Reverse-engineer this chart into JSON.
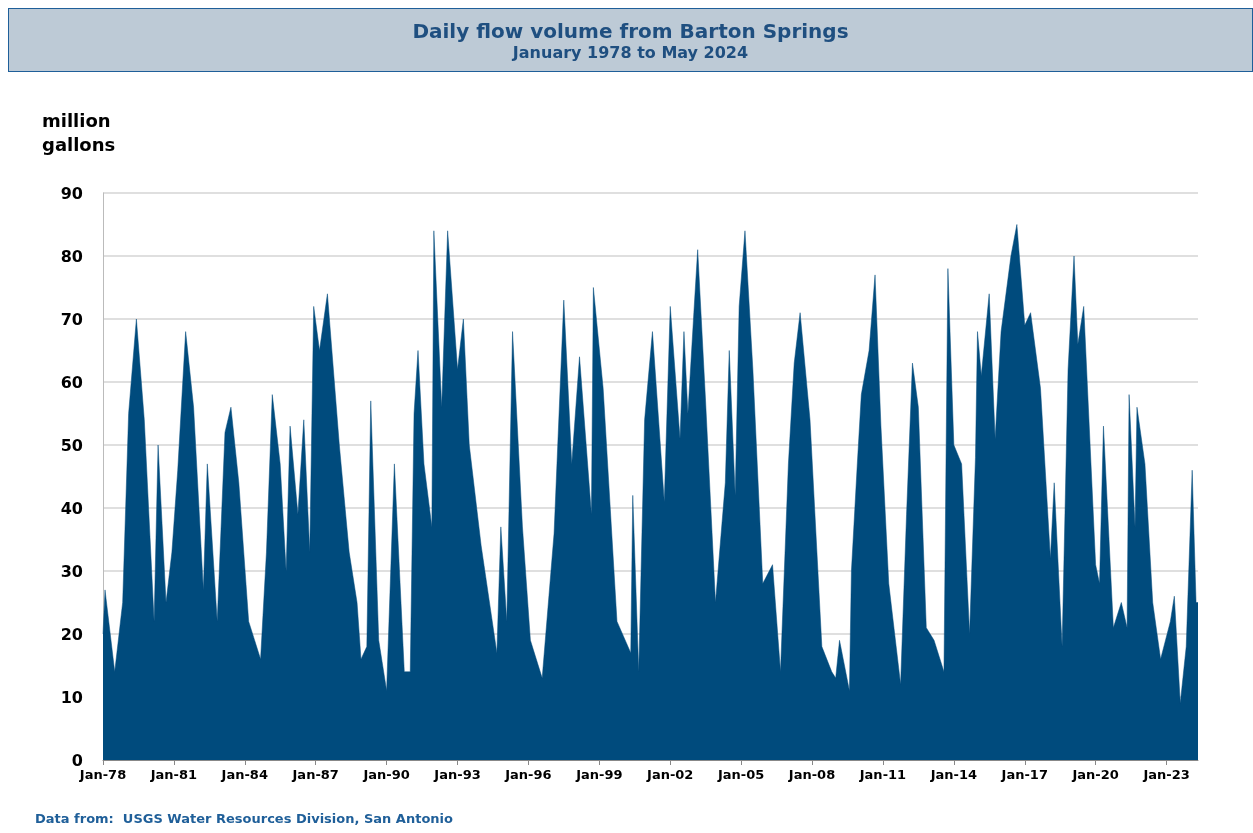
{
  "chart_data": {
    "type": "area",
    "title": "Daily flow volume from Barton Springs",
    "subtitle": "January 1978 to May 2024",
    "ylabel": "million gallons",
    "annotations": [
      "Data from:  USGS Water Resources Division, San Antonio"
    ],
    "color": "#004b7d",
    "x": [
      "1978-01",
      "1978-02",
      "1978-07",
      "1978-11",
      "1979-02",
      "1979-06",
      "1979-10",
      "1980-03",
      "1980-05",
      "1980-09",
      "1980-12",
      "1981-03",
      "1981-07",
      "1981-11",
      "1982-04",
      "1982-06",
      "1982-11",
      "1983-03",
      "1983-06",
      "1983-10",
      "1984-03",
      "1984-09",
      "1984-12",
      "1985-03",
      "1985-07",
      "1985-10",
      "1985-12",
      "1986-04",
      "1986-07",
      "1986-10",
      "1986-12",
      "1987-03",
      "1987-07",
      "1988-01",
      "1988-06",
      "1988-10",
      "1988-12",
      "1989-03",
      "1989-05",
      "1989-09",
      "1990-01",
      "1990-05",
      "1990-10",
      "1991-01",
      "1991-03",
      "1991-05",
      "1991-08",
      "1991-12",
      "1992-01",
      "1992-05",
      "1992-08",
      "1993-01",
      "1993-04",
      "1993-07",
      "1994-01",
      "1994-09",
      "1994-11",
      "1995-02",
      "1995-05",
      "1995-10",
      "1996-02",
      "1996-08",
      "1997-02",
      "1997-07",
      "1997-11",
      "1998-03",
      "1998-09",
      "1998-10",
      "1999-03",
      "1999-10",
      "2000-05",
      "2000-06",
      "2000-09",
      "2000-12",
      "2001-04",
      "2001-10",
      "2002-01",
      "2002-06",
      "2002-08",
      "2002-10",
      "2003-01",
      "2003-03",
      "2003-07",
      "2003-12",
      "2004-05",
      "2004-07",
      "2004-10",
      "2004-12",
      "2005-03",
      "2005-07",
      "2005-12",
      "2006-05",
      "2006-09",
      "2007-01",
      "2007-04",
      "2007-07",
      "2007-12",
      "2008-06",
      "2008-11",
      "2009-01",
      "2009-03",
      "2009-08",
      "2009-09",
      "2009-12",
      "2010-02",
      "2010-06",
      "2010-09",
      "2010-12",
      "2011-04",
      "2011-10",
      "2012-01",
      "2012-04",
      "2012-07",
      "2012-11",
      "2013-03",
      "2013-08",
      "2013-10",
      "2014-01",
      "2014-05",
      "2014-09",
      "2014-12",
      "2015-01",
      "2015-03",
      "2015-07",
      "2015-10",
      "2016-01",
      "2016-06",
      "2016-09",
      "2017-01",
      "2017-04",
      "2017-09",
      "2018-02",
      "2018-04",
      "2018-08",
      "2018-11",
      "2019-02",
      "2019-04",
      "2019-07",
      "2020-01",
      "2020-03",
      "2020-05",
      "2020-10",
      "2021-02",
      "2021-05",
      "2021-06",
      "2021-09",
      "2021-10",
      "2022-02",
      "2022-06",
      "2022-10",
      "2023-03",
      "2023-05",
      "2023-08",
      "2023-11",
      "2024-02",
      "2024-04",
      "2024-05"
    ],
    "values": [
      20,
      27,
      14,
      25,
      55,
      70,
      54,
      22,
      50,
      25,
      33,
      46,
      68,
      56,
      27,
      47,
      22,
      52,
      56,
      44,
      22,
      16,
      33,
      58,
      47,
      30,
      53,
      39,
      54,
      33,
      72,
      65,
      74,
      50,
      33,
      25,
      16,
      18,
      57,
      19,
      11,
      47,
      14,
      14,
      55,
      65,
      47,
      37,
      84,
      56,
      84,
      62,
      70,
      50,
      34,
      17,
      37,
      22,
      68,
      37,
      19,
      13,
      36,
      73,
      47,
      64,
      39,
      75,
      59,
      22,
      17,
      42,
      14,
      54,
      68,
      41,
      72,
      51,
      68,
      55,
      71,
      81,
      57,
      25,
      44,
      65,
      42,
      72,
      84,
      62,
      28,
      31,
      14,
      47,
      63,
      71,
      54,
      18,
      14,
      13,
      19,
      11,
      30,
      47,
      58,
      65,
      77,
      53,
      28,
      12,
      39,
      63,
      56,
      21,
      19,
      14,
      78,
      50,
      47,
      20,
      48,
      68,
      61,
      74,
      51,
      68,
      80,
      85,
      69,
      71,
      59,
      32,
      44,
      18,
      62,
      80,
      66,
      72,
      31,
      28,
      53,
      21,
      25,
      21,
      58,
      37,
      56,
      47,
      25,
      16,
      22,
      26,
      9,
      18,
      46,
      25,
      25
    ],
    "xlim": [
      "1978-01",
      "2024-05"
    ],
    "xticks": [
      {
        "value": "1978-01",
        "label": "Jan-78"
      },
      {
        "value": "1981-01",
        "label": "Jan-81"
      },
      {
        "value": "1984-01",
        "label": "Jan-84"
      },
      {
        "value": "1987-01",
        "label": "Jan-87"
      },
      {
        "value": "1990-01",
        "label": "Jan-90"
      },
      {
        "value": "1993-01",
        "label": "Jan-93"
      },
      {
        "value": "1996-01",
        "label": "Jan-96"
      },
      {
        "value": "1999-01",
        "label": "Jan-99"
      },
      {
        "value": "2002-01",
        "label": "Jan-02"
      },
      {
        "value": "2005-01",
        "label": "Jan-05"
      },
      {
        "value": "2008-01",
        "label": "Jan-08"
      },
      {
        "value": "2011-01",
        "label": "Jan-11"
      },
      {
        "value": "2014-01",
        "label": "Jan-14"
      },
      {
        "value": "2017-01",
        "label": "Jan-17"
      },
      {
        "value": "2020-01",
        "label": "Jan-20"
      },
      {
        "value": "2023-01",
        "label": "Jan-23"
      }
    ],
    "ylim": [
      0,
      90
    ],
    "yticks": [
      0,
      10,
      20,
      30,
      40,
      50,
      60,
      70,
      80,
      90
    ],
    "grid": "y"
  }
}
